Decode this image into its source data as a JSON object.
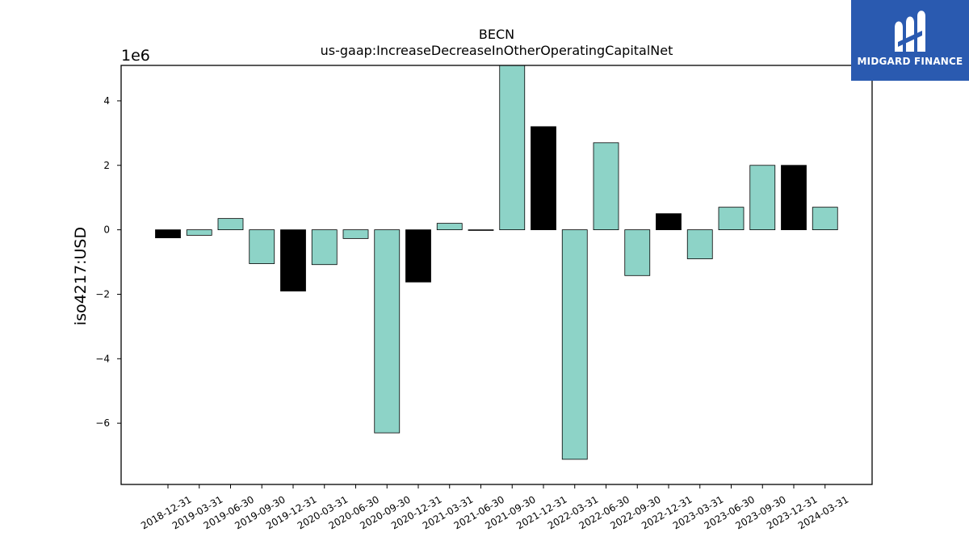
{
  "chart_data": {
    "type": "bar",
    "title": "BECN",
    "subtitle": "us-gaap:IncreaseDecreaseInOtherOperatingCapitalNet",
    "ylabel": "iso4217:USD",
    "xlabel": "",
    "scale_label": "1e6",
    "scale": 1000000,
    "ylim": [
      -7.9,
      5.1
    ],
    "yticks": [
      -6,
      -4,
      -2,
      0,
      2,
      4
    ],
    "grid": false,
    "categories": [
      "2018-12-31",
      "2019-03-31",
      "2019-06-30",
      "2019-09-30",
      "2019-12-31",
      "2020-03-31",
      "2020-06-30",
      "2020-09-30",
      "2020-12-31",
      "2021-03-31",
      "2021-06-30",
      "2021-09-30",
      "2021-12-31",
      "2022-03-31",
      "2022-06-30",
      "2022-09-30",
      "2022-12-31",
      "2023-03-31",
      "2023-06-30",
      "2023-09-30",
      "2023-12-31",
      "2024-03-31"
    ],
    "values": [
      -0.25,
      -0.17,
      0.35,
      -1.05,
      -1.9,
      -1.08,
      -0.27,
      -6.3,
      -1.62,
      0.2,
      -0.02,
      5.1,
      3.2,
      -7.12,
      2.7,
      -1.42,
      0.5,
      -0.9,
      0.7,
      2.0,
      2.0,
      0.7
    ],
    "bar_colors": [
      "#000000",
      "#8dd3c7",
      "#8dd3c7",
      "#8dd3c7",
      "#000000",
      "#8dd3c7",
      "#8dd3c7",
      "#8dd3c7",
      "#000000",
      "#8dd3c7",
      "#000000",
      "#8dd3c7",
      "#000000",
      "#8dd3c7",
      "#8dd3c7",
      "#8dd3c7",
      "#000000",
      "#8dd3c7",
      "#8dd3c7",
      "#8dd3c7",
      "#000000",
      "#8dd3c7"
    ]
  },
  "logo": {
    "text": "MIDGARD FINANCE",
    "background": "#2a5ab0",
    "icon": "midgard-logo-icon"
  }
}
